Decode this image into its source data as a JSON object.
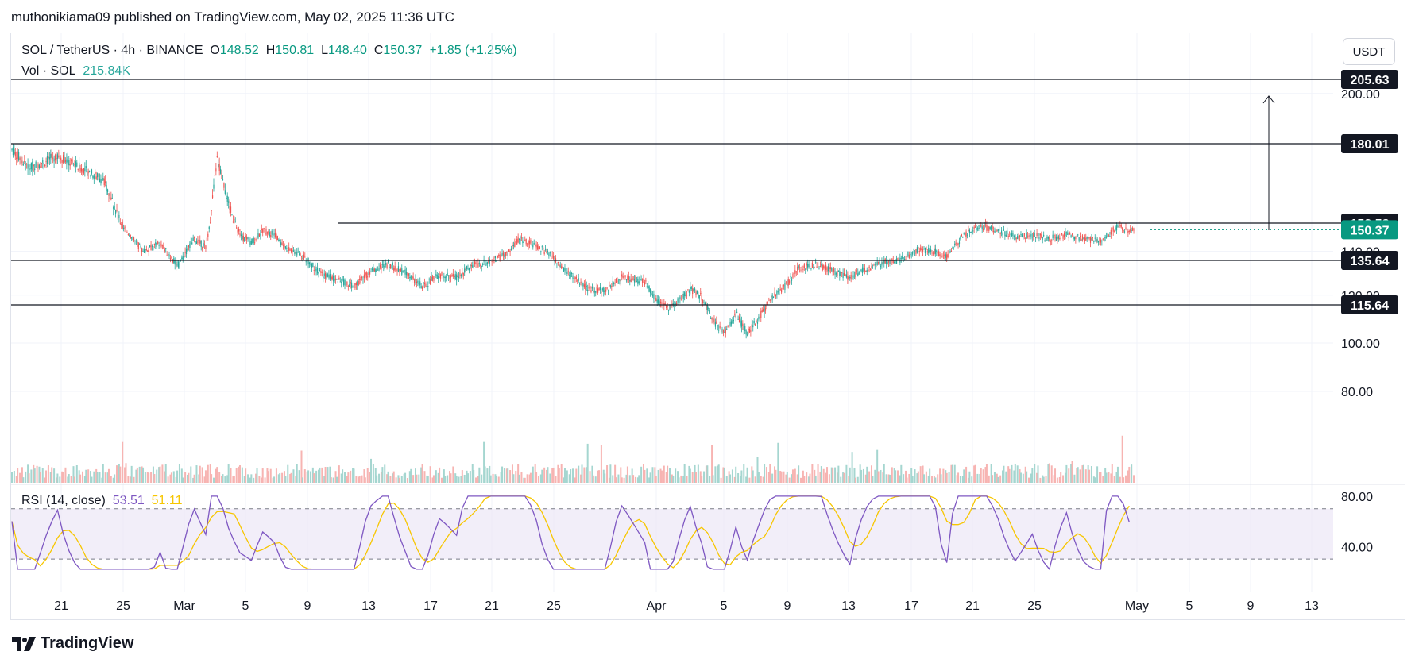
{
  "header": {
    "publish_line": "muthonikiama09 published on TradingView.com, May 02, 2025 11:36 UTC"
  },
  "legend": {
    "symbol": "SOL / TetherUS · 4h · BINANCE",
    "o_label": "O",
    "o_value": "148.52",
    "h_label": "H",
    "h_value": "150.81",
    "l_label": "L",
    "l_value": "148.40",
    "c_label": "C",
    "c_value": "150.37",
    "change": "+1.85 (+1.25%)",
    "vol_label": "Vol · SOL",
    "vol_value": "215.84K"
  },
  "currency_button": "USDT",
  "rsi": {
    "label": "RSI (14, close)",
    "value": "53.51",
    "ma_value": "51.11"
  },
  "footer": {
    "brand": "TradingView"
  },
  "colors": {
    "up": "#26a69a",
    "down": "#ef5350",
    "rsi_line": "#7e57c2",
    "rsi_ma": "#f7c600",
    "rsi_band": "#ede7f6",
    "level_line": "#131722",
    "current_price_bg": "#089981"
  },
  "chart_data": {
    "type": "candlestick",
    "symbol": "SOL/USDT",
    "timeframe": "4h",
    "y_ticks": [
      "200.00",
      "140.00",
      "120.00",
      "100.00",
      "80.00"
    ],
    "ylim": [
      75,
      210
    ],
    "x_ticks": [
      "21",
      "25",
      "Mar",
      "5",
      "9",
      "13",
      "17",
      "21",
      "25",
      "Apr",
      "5",
      "9",
      "13",
      "17",
      "21",
      "25",
      "May",
      "5",
      "9",
      "13"
    ],
    "horizontal_levels": [
      {
        "value": 205.63,
        "label": "205.63"
      },
      {
        "value": 180.01,
        "label": "180.01"
      },
      {
        "value": 153.58,
        "label": "153.58"
      },
      {
        "value": 135.64,
        "label": "135.64"
      },
      {
        "value": 115.64,
        "label": "115.64"
      }
    ],
    "current_price": {
      "value": 150.37,
      "label": "150.37"
    },
    "rsi_ticks": [
      "80.00",
      "40.00"
    ],
    "rsi_ylim": [
      20,
      85
    ],
    "rsi_bands": [
      70,
      50,
      30
    ],
    "path_points": [
      [
        0,
        178
      ],
      [
        3,
        172
      ],
      [
        8,
        176
      ],
      [
        12,
        172
      ],
      [
        16,
        168
      ],
      [
        20,
        150
      ],
      [
        23,
        140
      ],
      [
        26,
        144
      ],
      [
        29,
        133
      ],
      [
        32,
        146
      ],
      [
        34,
        142
      ],
      [
        36,
        175
      ],
      [
        38,
        160
      ],
      [
        40,
        148
      ],
      [
        42,
        144
      ],
      [
        44,
        150
      ],
      [
        46,
        148
      ],
      [
        48,
        142
      ],
      [
        51,
        138
      ],
      [
        54,
        130
      ],
      [
        57,
        127
      ],
      [
        60,
        124
      ],
      [
        63,
        131
      ],
      [
        66,
        134
      ],
      [
        69,
        130
      ],
      [
        72,
        124
      ],
      [
        75,
        129
      ],
      [
        78,
        128
      ],
      [
        81,
        134
      ],
      [
        84,
        135
      ],
      [
        87,
        139
      ],
      [
        89,
        146
      ],
      [
        92,
        143
      ],
      [
        95,
        137
      ],
      [
        98,
        129
      ],
      [
        101,
        123
      ],
      [
        104,
        122
      ],
      [
        107,
        128
      ],
      [
        109,
        127
      ],
      [
        111,
        126
      ],
      [
        113,
        118
      ],
      [
        115,
        114
      ],
      [
        117,
        118
      ],
      [
        119,
        123
      ],
      [
        121,
        119
      ],
      [
        123,
        109
      ],
      [
        125,
        104
      ],
      [
        127,
        112
      ],
      [
        129,
        104
      ],
      [
        131,
        110
      ],
      [
        133,
        118
      ],
      [
        135,
        122
      ],
      [
        138,
        132
      ],
      [
        141,
        134
      ],
      [
        144,
        131
      ],
      [
        147,
        128
      ],
      [
        150,
        132
      ],
      [
        153,
        135
      ],
      [
        156,
        136
      ],
      [
        159,
        141
      ],
      [
        162,
        140
      ],
      [
        164,
        137
      ],
      [
        167,
        148
      ],
      [
        170,
        152
      ],
      [
        173,
        150
      ],
      [
        176,
        147
      ],
      [
        179,
        148
      ],
      [
        182,
        146
      ],
      [
        185,
        148
      ],
      [
        188,
        146
      ],
      [
        191,
        145
      ],
      [
        194,
        152
      ],
      [
        196,
        150
      ]
    ]
  }
}
